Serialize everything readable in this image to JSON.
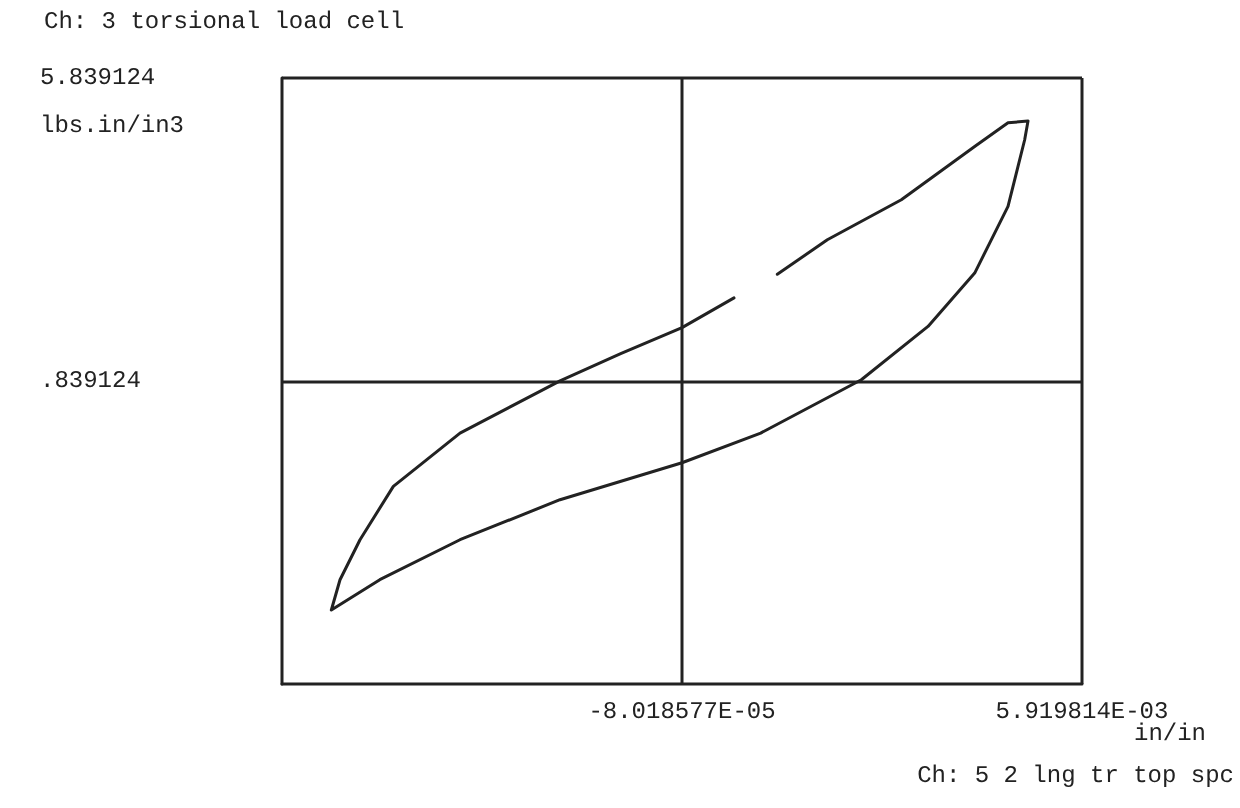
{
  "chart_data": {
    "type": "line",
    "title": "Ch: 3 torsional load cell",
    "ylabel": "lbs.in/in3",
    "xlabel": "in/in",
    "annotations": [
      "Ch: 5 2 lng tr top spc"
    ],
    "xlim": [
      -0.00608018577,
      0.005919814
    ],
    "ylim": [
      -4.160876,
      5.839124
    ],
    "xticks": [
      {
        "value": -8.018577e-05,
        "label": "-8.018577E-05"
      },
      {
        "value": 0.005919814,
        "label": "5.919814E-03"
      }
    ],
    "yticks": [
      {
        "value": 0.839124,
        "label": ".839124"
      },
      5.839124
    ],
    "grid": true,
    "marker": "none",
    "line_style": "solid",
    "series": [
      {
        "color": "#222222",
        "x": [
          -0.00534,
          -0.004613,
          -0.00341,
          -0.00191,
          -8e-05,
          0.0011,
          0.00261,
          0.00361,
          0.00431,
          0.00481,
          0.00506,
          0.00511,
          0.00481,
          0.00431,
          0.00321,
          0.0021,
          0.00135,
          0.001,
          0.0007,
          -8e-05,
          -0.001,
          -0.00191,
          -0.00341,
          -0.00441,
          -0.00491,
          -0.00521,
          -0.00534
        ],
        "values": [
          -2.94,
          -2.44,
          -1.78,
          -1.12,
          -0.51,
          -0.02,
          0.86,
          1.74,
          2.62,
          3.72,
          4.82,
          5.13,
          5.1,
          4.71,
          3.83,
          3.17,
          2.6,
          null,
          2.21,
          1.72,
          1.29,
          0.84,
          -0.02,
          -0.9,
          -1.78,
          -2.44,
          -2.94
        ]
      }
    ]
  }
}
